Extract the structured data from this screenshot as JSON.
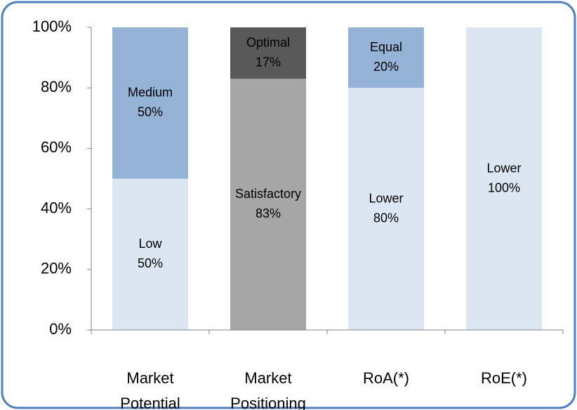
{
  "chart_data": {
    "type": "stacked_bar",
    "categories": [
      "Market Potential",
      "Market Positioning",
      "RoA(*)",
      "RoE(*)"
    ],
    "bars": [
      {
        "names": [
          "Low",
          "Medium"
        ],
        "values": [
          50,
          50
        ],
        "value_labels": [
          "50%",
          "50%"
        ],
        "colors": [
          "#dce6f2",
          "#95b3d7"
        ]
      },
      {
        "names": [
          "Satisfactory",
          "Optimal"
        ],
        "values": [
          83,
          17
        ],
        "value_labels": [
          "83%",
          "17%"
        ],
        "colors": [
          "#a6a6a6",
          "#595959"
        ]
      },
      {
        "names": [
          "Lower",
          "Equal"
        ],
        "values": [
          80,
          20
        ],
        "value_labels": [
          "80%",
          "20%"
        ],
        "colors": [
          "#dce6f2",
          "#95b3d7"
        ]
      },
      {
        "names": [
          "Lower"
        ],
        "values": [
          100
        ],
        "value_labels": [
          "100%"
        ],
        "colors": [
          "#dce6f2"
        ]
      }
    ],
    "ylim": [
      0,
      100
    ],
    "yticks": [
      {
        "value": 0,
        "label": "0%"
      },
      {
        "value": 20,
        "label": "20%"
      },
      {
        "value": 40,
        "label": "40%"
      },
      {
        "value": 60,
        "label": "60%"
      },
      {
        "value": 80,
        "label": "80%"
      },
      {
        "value": 100,
        "label": "100%"
      }
    ]
  }
}
